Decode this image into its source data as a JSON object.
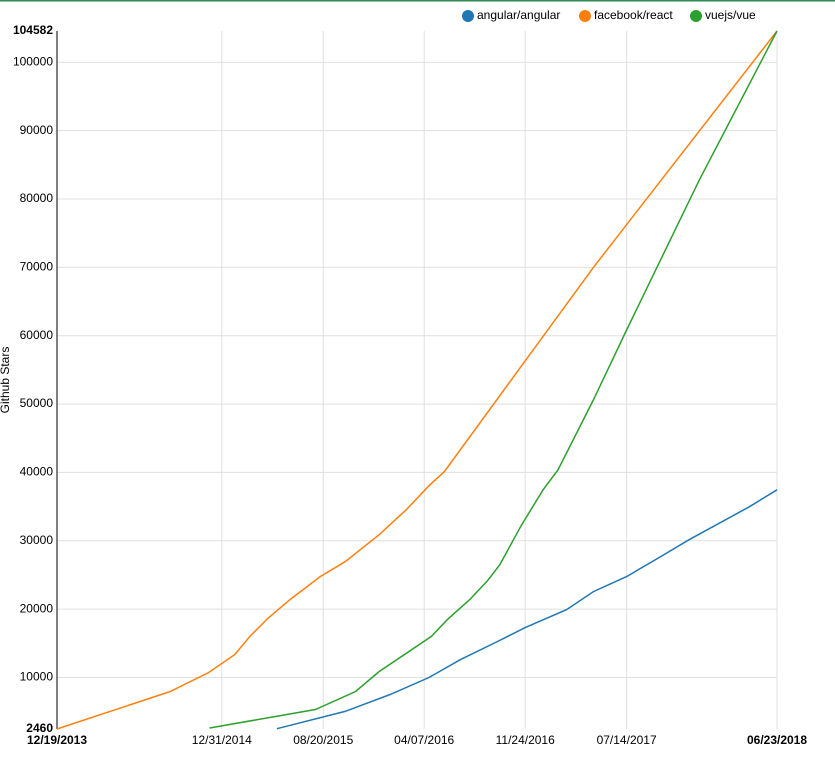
{
  "chart_data": {
    "type": "line",
    "y_label": "Github Stars",
    "ylim": [
      2460,
      104582
    ],
    "yticks": [
      2460,
      10000,
      20000,
      30000,
      40000,
      50000,
      60000,
      70000,
      80000,
      90000,
      100000,
      104582
    ],
    "xlim": [
      "12/19/2013",
      "06/23/2018"
    ],
    "xticks": [
      "12/19/2013",
      "12/31/2014",
      "08/20/2015",
      "04/07/2016",
      "11/24/2016",
      "07/14/2017",
      "06/23/2018"
    ],
    "grid": true,
    "legend": "top",
    "series": [
      {
        "name": "angular/angular",
        "color": "#1f77b4",
        "x": [
          "05/06/2015",
          "10/09/2015",
          "01/20/2016",
          "04/18/2016",
          "06/29/2016",
          "09/17/2016",
          "11/24/2016",
          "02/27/2017",
          "04/29/2017",
          "07/14/2017",
          "09/26/2017",
          "12/04/2017",
          "04/21/2018",
          "06/23/2018"
        ],
        "values": [
          2500,
          5030,
          7510,
          10000,
          12620,
          15110,
          17300,
          19930,
          22560,
          24750,
          27530,
          30160,
          34980,
          37460
        ]
      },
      {
        "name": "facebook/react",
        "color": "#ff7f0e",
        "x": [
          "12/19/2013",
          "09/04/2014",
          "12/01/2014",
          "01/30/2015",
          "03/05/2015",
          "04/15/2015",
          "06/05/2015",
          "08/13/2015",
          "10/09/2015",
          "12/26/2015",
          "02/26/2016",
          "04/18/2016",
          "05/23/2016",
          "04/29/2017",
          "06/23/2018"
        ],
        "values": [
          2460,
          7950,
          10725,
          13360,
          15990,
          18620,
          21390,
          24750,
          26940,
          30890,
          34540,
          38050,
          40100,
          70000,
          104582
        ]
      },
      {
        "name": "vuejs/vue",
        "color": "#2ca02c",
        "x": [
          "12/03/2014",
          "08/02/2015",
          "11/02/2015",
          "12/26/2015",
          "04/23/2016",
          "05/30/2016",
          "07/20/2016",
          "08/30/2016",
          "09/27/2016",
          "11/16/2016",
          "01/04/2017",
          "02/07/2017",
          "04/29/2017",
          "07/14/2017",
          "12/27/2017",
          "06/23/2018"
        ],
        "values": [
          2600,
          5320,
          7950,
          10870,
          15990,
          18470,
          21390,
          24170,
          26500,
          32350,
          37460,
          40380,
          50610,
          60840,
          82760,
          104582
        ]
      }
    ]
  }
}
